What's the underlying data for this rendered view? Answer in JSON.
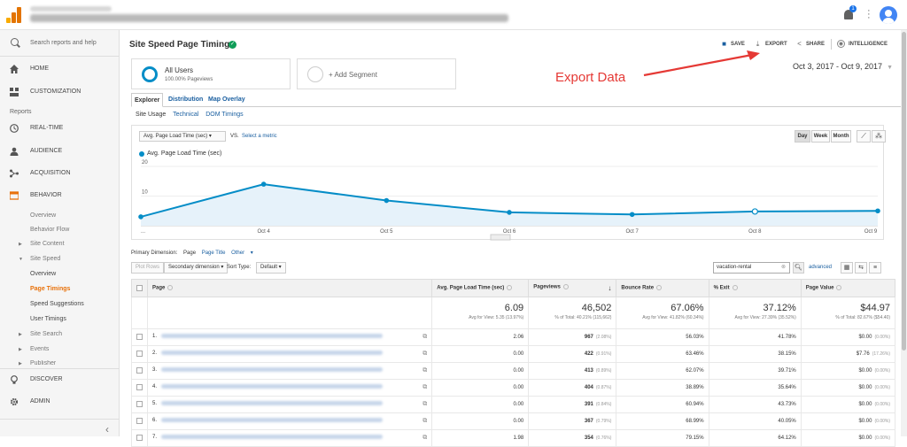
{
  "sidebar": {
    "search_placeholder": "Search reports and help",
    "home": "HOME",
    "customization": "CUSTOMIZATION",
    "reports_label": "Reports",
    "realtime": "REAL-TIME",
    "audience": "AUDIENCE",
    "acquisition": "ACQUISITION",
    "behavior": "BEHAVIOR",
    "sub": {
      "overview": "Overview",
      "behavior_flow": "Behavior Flow",
      "site_content": "Site Content",
      "site_speed": "Site Speed",
      "ss_overview": "Overview",
      "page_timings": "Page Timings",
      "speed_suggestions": "Speed Suggestions",
      "user_timings": "User Timings",
      "site_search": "Site Search",
      "events": "Events",
      "publisher": "Publisher"
    },
    "discover": "DISCOVER",
    "admin": "ADMIN"
  },
  "topbar": {
    "notification_count": "1"
  },
  "header": {
    "title": "Site Speed Page Timings",
    "save": "SAVE",
    "export": "EXPORT",
    "share": "SHARE",
    "intelligence": "INTELLIGENCE"
  },
  "segments": {
    "all_users": "All Users",
    "all_users_sub": "100.00% Pageviews",
    "add_segment": "+ Add Segment"
  },
  "date_range": "Oct 3, 2017 - Oct 9, 2017",
  "annotation": "Export Data",
  "tabs": [
    "Explorer",
    "Distribution",
    "Map Overlay"
  ],
  "subtabs": [
    "Site Usage",
    "Technical",
    "DOM Timings"
  ],
  "chart_controls": {
    "metric": "Avg. Page Load Time (sec)",
    "vs": "VS.",
    "select_metric": "Select a metric",
    "day": "Day",
    "week": "Week",
    "month": "Month"
  },
  "chart_data": {
    "type": "line",
    "title": "",
    "series": [
      {
        "name": "Avg. Page Load Time (sec)",
        "values": [
          3.0,
          14.0,
          8.5,
          4.5,
          3.8,
          4.8,
          5.0
        ]
      }
    ],
    "x": [
      "...",
      "Oct 4",
      "Oct 5",
      "Oct 6",
      "Oct 7",
      "Oct 8",
      "Oct 9"
    ],
    "yticks": [
      "20",
      "10"
    ],
    "ylim": [
      0,
      20
    ],
    "color": "#058dc7",
    "grid": true
  },
  "dimension": {
    "label": "Primary Dimension:",
    "page": "Page",
    "page_title": "Page Title",
    "other": "Other"
  },
  "tools": {
    "plot_rows": "Plot Rows",
    "secondary": "Secondary dimension",
    "sort_type": "Sort Type:",
    "default": "Default",
    "search_value": "vacation-rental",
    "advanced": "advanced"
  },
  "table": {
    "headers": [
      "Page",
      "Avg. Page Load Time (sec)",
      "Pageviews",
      "Bounce Rate",
      "% Exit",
      "Page Value"
    ],
    "totals": {
      "load": "6.09",
      "load_sub": "Avg for View: 5.35 (13.97%)",
      "pv": "46,502",
      "pv_sub": "% of Total: 40.21% (115,662)",
      "br": "67.06%",
      "br_sub": "Avg for View: 41.82% (60.34%)",
      "exit": "37.12%",
      "exit_sub": "Avg for View: 27.39% (35.52%)",
      "val": "$44.97",
      "val_sub": "% of Total: 82.67% ($54.40)"
    },
    "rows": [
      {
        "n": "1.",
        "load": "2.06",
        "pv": "967",
        "pvp": "(2.08%)",
        "br": "56.03%",
        "exit": "41.78%",
        "val": "$0.00",
        "valp": "(0.00%)"
      },
      {
        "n": "2.",
        "load": "0.00",
        "pv": "422",
        "pvp": "(0.91%)",
        "br": "63.46%",
        "exit": "38.15%",
        "val": "$7.76",
        "valp": "(17.26%)"
      },
      {
        "n": "3.",
        "load": "0.00",
        "pv": "413",
        "pvp": "(0.89%)",
        "br": "62.07%",
        "exit": "39.71%",
        "val": "$0.00",
        "valp": "(0.00%)"
      },
      {
        "n": "4.",
        "load": "0.00",
        "pv": "404",
        "pvp": "(0.87%)",
        "br": "38.89%",
        "exit": "35.64%",
        "val": "$0.00",
        "valp": "(0.00%)"
      },
      {
        "n": "5.",
        "load": "0.00",
        "pv": "391",
        "pvp": "(0.84%)",
        "br": "60.94%",
        "exit": "43.73%",
        "val": "$0.00",
        "valp": "(0.00%)"
      },
      {
        "n": "6.",
        "load": "0.00",
        "pv": "367",
        "pvp": "(0.79%)",
        "br": "68.99%",
        "exit": "40.05%",
        "val": "$0.00",
        "valp": "(0.00%)"
      },
      {
        "n": "7.",
        "load": "1.98",
        "pv": "354",
        "pvp": "(0.76%)",
        "br": "79.15%",
        "exit": "64.12%",
        "val": "$0.00",
        "valp": "(0.00%)"
      }
    ]
  }
}
